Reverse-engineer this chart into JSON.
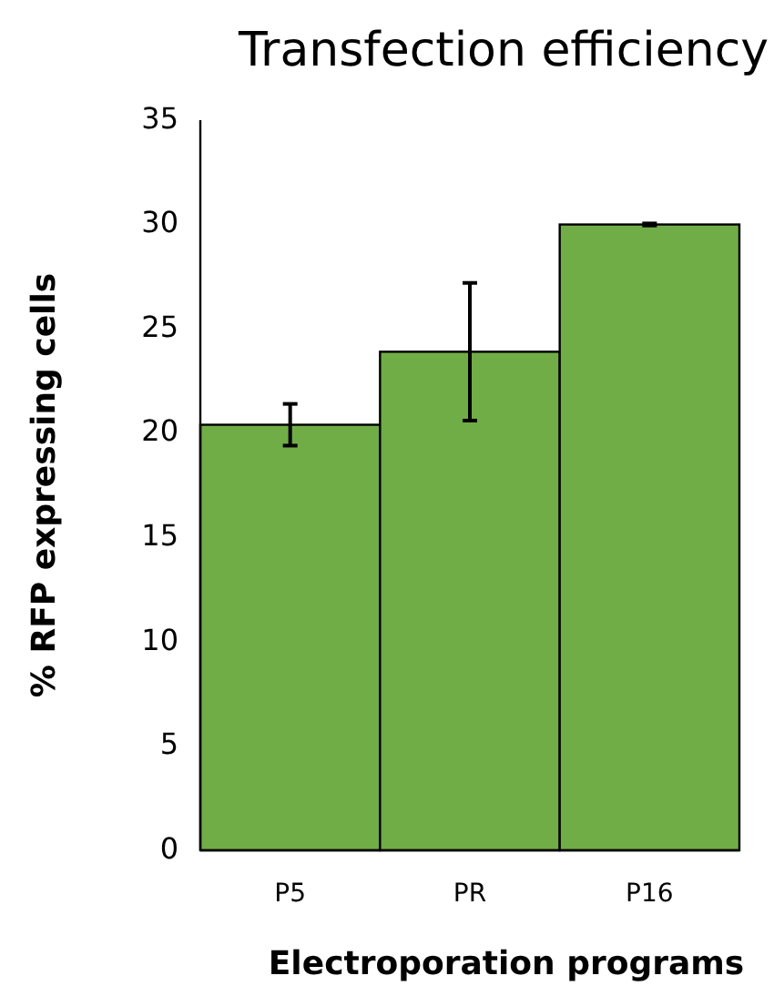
{
  "chart_data": {
    "type": "bar",
    "title": "Transfection efficiency",
    "xlabel": "Electroporation programs",
    "ylabel": "% RFP expressing cells",
    "categories": [
      "P5",
      "PR",
      "P16"
    ],
    "values": [
      20.4,
      23.9,
      30
    ],
    "errors": [
      1,
      3.3,
      0.05
    ],
    "color": "#70ad47",
    "ylim": [
      0,
      35
    ],
    "yticks": [
      0,
      5,
      10,
      15,
      20,
      25,
      30,
      35
    ],
    "grid": false
  }
}
